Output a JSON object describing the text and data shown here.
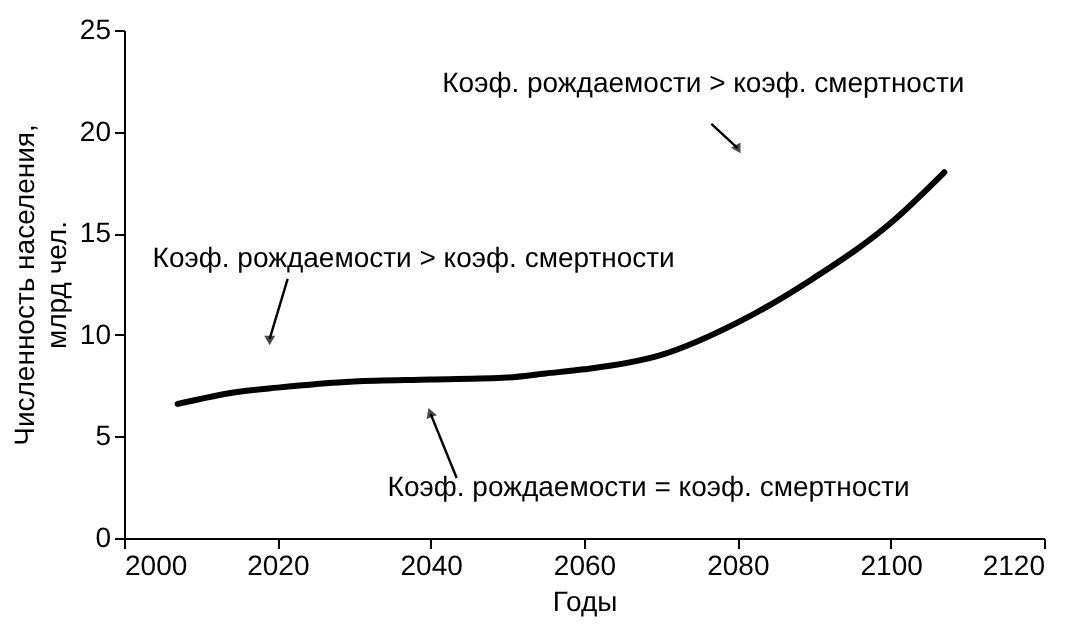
{
  "chart_data": {
    "type": "line",
    "xlabel": "Годы",
    "ylabel": "Численность населения,\nмлрд чел.",
    "x": [
      2007,
      2015,
      2020,
      2030,
      2040,
      2050,
      2055,
      2060,
      2070,
      2080,
      2090,
      2100,
      2107
    ],
    "series": [
      {
        "color": "#000000",
        "values": [
          6.6,
          7.2,
          7.4,
          7.7,
          7.8,
          7.9,
          8.1,
          8.3,
          9.0,
          10.6,
          12.8,
          15.5,
          18.0
        ]
      }
    ],
    "xlim": [
      2000,
      2120
    ],
    "xticks": [
      2000,
      2020,
      2040,
      2060,
      2080,
      2100,
      2120
    ],
    "ylim": [
      0,
      25
    ],
    "yticks": [
      0,
      5,
      10,
      15,
      20,
      25
    ],
    "grid": false,
    "line_style": "solid",
    "marker": "none",
    "annotations": [
      {
        "text": "Коэф. рождаемости > коэф. смертности",
        "x": 2019,
        "y": 9.8
      },
      {
        "text": "Коэф. рождаемости = коэф. смертности",
        "x": 2040,
        "y": 6.1
      },
      {
        "text": "Коэф. рождаемости > коэф. смертности",
        "x": 2080,
        "y": 19.2
      }
    ]
  }
}
